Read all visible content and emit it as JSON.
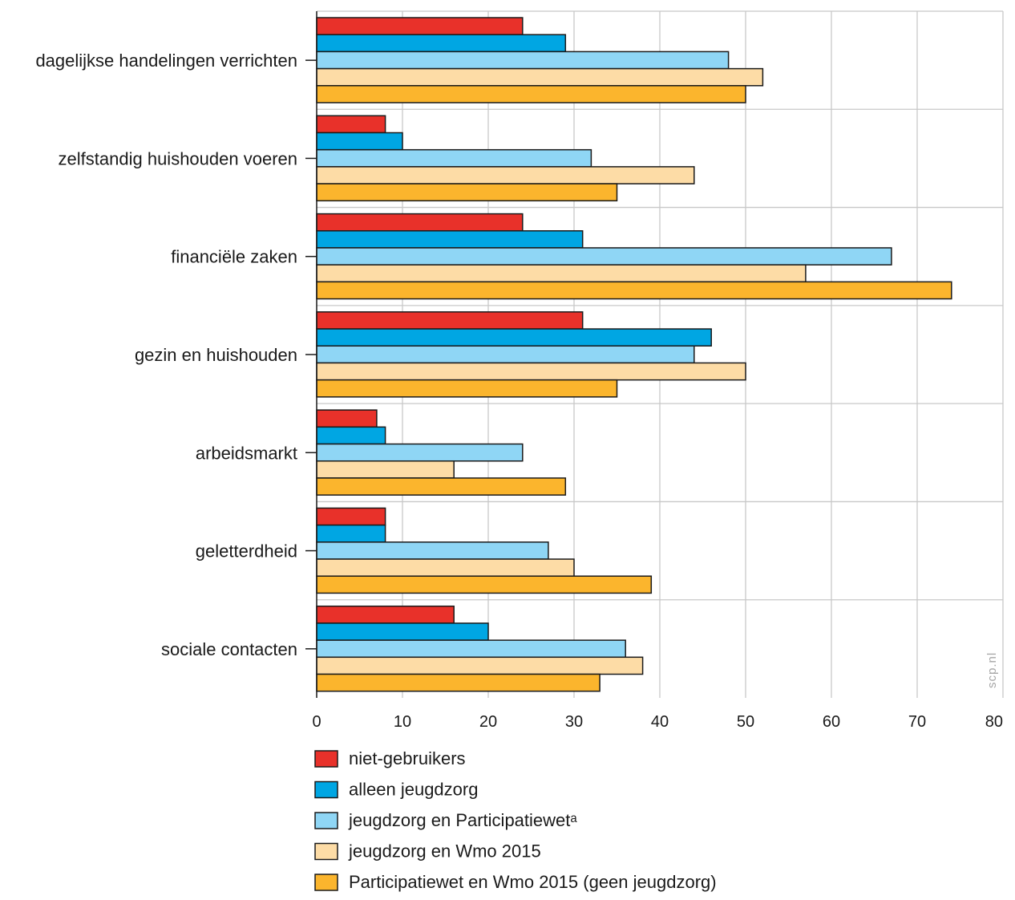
{
  "chart_data": {
    "type": "bar",
    "orientation": "horizontal",
    "categories": [
      "dagelijkse handelingen verrichten",
      "zelfstandig huishouden voeren",
      "financiële zaken",
      "gezin en huishouden",
      "arbeidsmarkt",
      "geletterdheid",
      "sociale contacten"
    ],
    "series": [
      {
        "name": "niet-gebruikers",
        "color": "#e8312a",
        "values": [
          24,
          8,
          24,
          31,
          7,
          8,
          16
        ]
      },
      {
        "name": "alleen jeugdzorg",
        "color": "#00a6e3",
        "values": [
          29,
          10,
          31,
          46,
          8,
          8,
          20
        ]
      },
      {
        "name": "jeugdzorg en Participatiewetᵃ",
        "color": "#8fd6f5",
        "values": [
          48,
          32,
          67,
          44,
          24,
          27,
          36
        ]
      },
      {
        "name": "jeugdzorg en Wmo 2015",
        "color": "#fddca6",
        "values": [
          52,
          44,
          57,
          50,
          16,
          30,
          38
        ]
      },
      {
        "name": "Participatiewet en Wmo 2015 (geen jeugdzorg)",
        "color": "#fbb52d",
        "values": [
          50,
          35,
          74,
          35,
          29,
          39,
          33
        ]
      }
    ],
    "xlim": [
      0,
      80
    ],
    "xticks": [
      0,
      10,
      20,
      30,
      40,
      50,
      60,
      70,
      80
    ],
    "xtick_labels": [
      "0",
      "10",
      "20",
      "30",
      "40",
      "50",
      "60",
      "70",
      "80"
    ],
    "grid": true,
    "legend_position": "bottom-left",
    "title": "",
    "xlabel": "",
    "ylabel": ""
  },
  "watermark": "scp.nl"
}
